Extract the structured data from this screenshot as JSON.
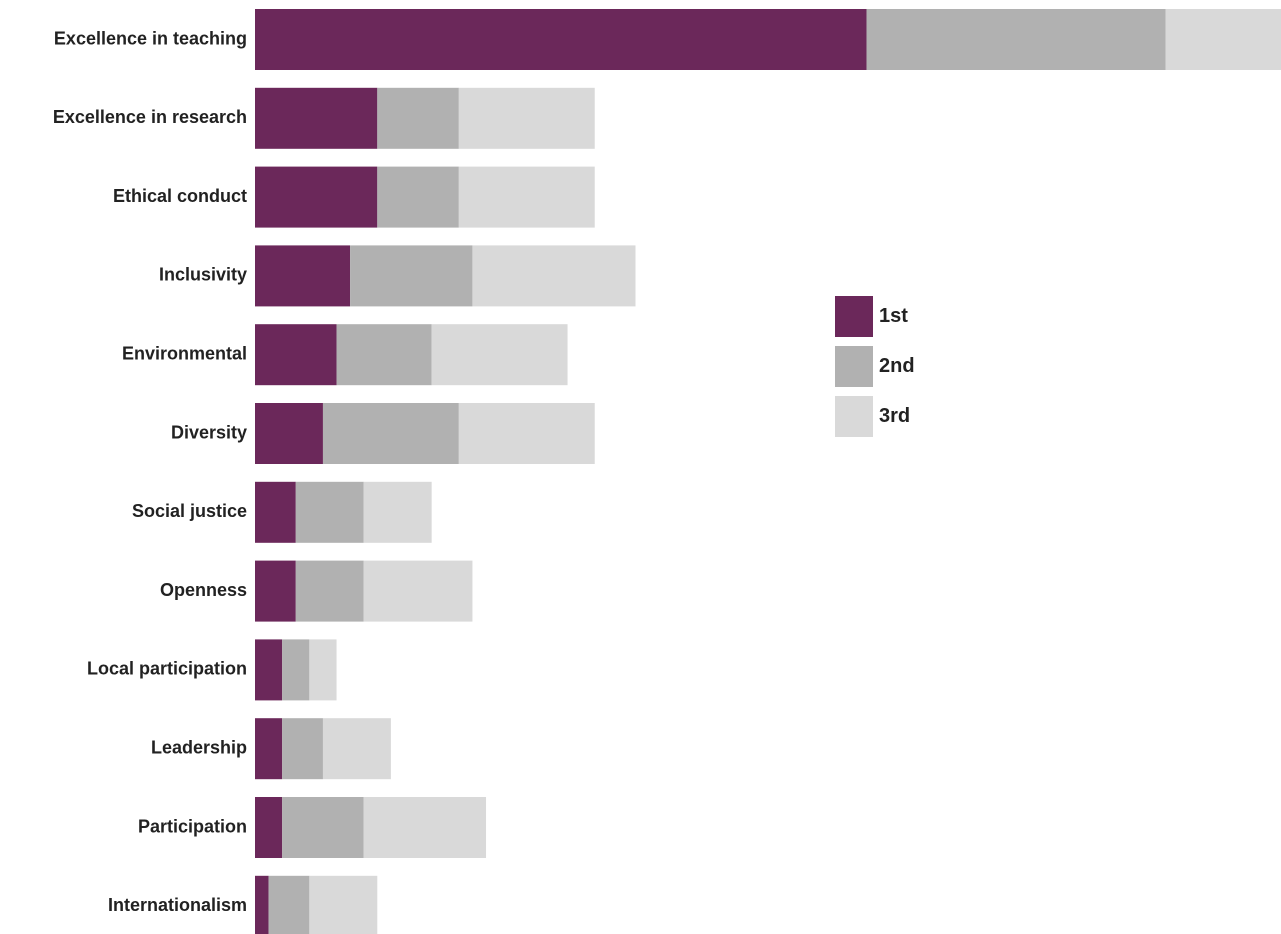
{
  "chart_data": {
    "type": "bar",
    "orientation": "horizontal",
    "stacked": true,
    "categories": [
      "Excellence in teaching",
      "Excellence in research",
      "Ethical conduct",
      "Inclusivity",
      "Environmental",
      "Diversity",
      "Social justice",
      "Openness",
      "Local participation",
      "Leadership",
      "Participation",
      "Internationalism"
    ],
    "series": [
      {
        "name": "1st",
        "color": "#6b285a",
        "values": [
          45,
          9,
          9,
          7,
          6,
          5,
          3,
          3,
          2,
          2,
          2,
          1
        ]
      },
      {
        "name": "2nd",
        "color": "#b1b1b1",
        "values": [
          22,
          6,
          6,
          9,
          7,
          10,
          5,
          5,
          2,
          3,
          6,
          3
        ]
      },
      {
        "name": "3rd",
        "color": "#d9d9d9",
        "values": [
          9,
          10,
          10,
          12,
          10,
          10,
          5,
          8,
          2,
          5,
          9,
          5
        ]
      }
    ],
    "xlim": [
      0,
      75.5
    ],
    "grid": false,
    "legend": {
      "placement": "right-center"
    }
  }
}
